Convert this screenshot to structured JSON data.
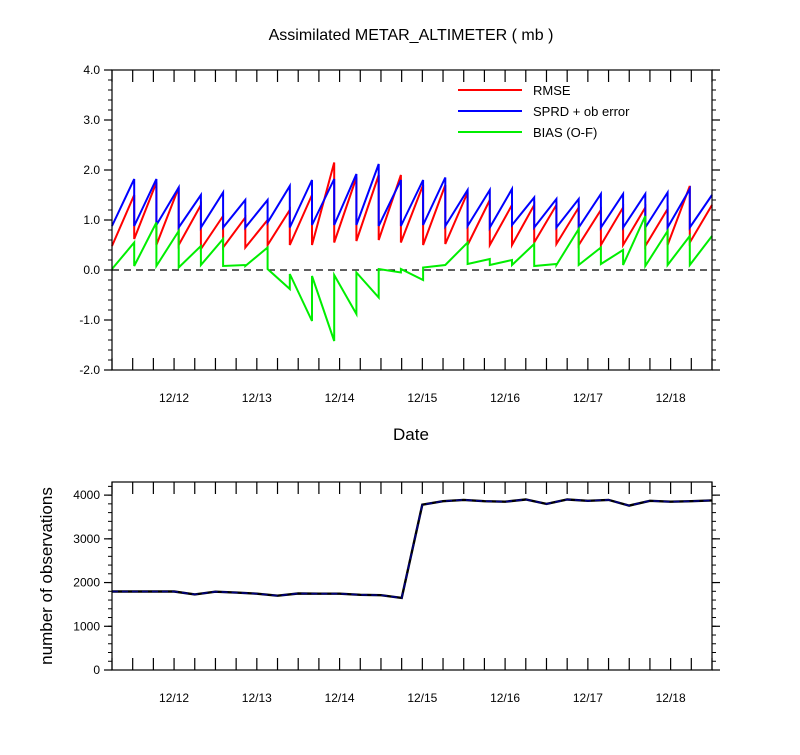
{
  "chart_data": [
    {
      "type": "line",
      "title": "Assimilated METAR_ALTIMETER ( mb )",
      "xlabel": "Date",
      "ylabel": "",
      "ylim": [
        -2.0,
        4.0
      ],
      "y_ticks": [
        {
          "value": 4.0,
          "label": "4.0"
        },
        {
          "value": 3.0,
          "label": "3.0"
        },
        {
          "value": 2.0,
          "label": "2.0"
        },
        {
          "value": 1.0,
          "label": "1.0"
        },
        {
          "value": 0.0,
          "label": "0.0"
        },
        {
          "value": -1.0,
          "label": "-1.0"
        },
        {
          "value": -2.0,
          "label": "-2.0"
        }
      ],
      "x_tick_labels": [
        {
          "day": 12,
          "label": "12/12"
        },
        {
          "day": 13,
          "label": "12/13"
        },
        {
          "day": 14,
          "label": "12/14"
        },
        {
          "day": 15,
          "label": "12/15"
        },
        {
          "day": 16,
          "label": "12/16"
        },
        {
          "day": 17,
          "label": "12/17"
        },
        {
          "day": 18,
          "label": "12/18"
        }
      ],
      "legend_position": "top-right",
      "zero_line": "dashed",
      "series": [
        {
          "name": "RMSE",
          "color": "#ff0000",
          "values": [
            [
              0.48,
              1.5
            ],
            [
              0.62,
              1.75
            ],
            [
              0.5,
              1.65
            ],
            [
              0.5,
              1.3
            ],
            [
              0.42,
              1.08
            ],
            [
              0.45,
              1.05
            ],
            [
              0.45,
              1.0
            ],
            [
              0.5,
              1.2
            ],
            [
              0.5,
              1.5
            ],
            [
              0.5,
              2.15
            ],
            [
              0.55,
              1.85
            ],
            [
              0.58,
              1.9
            ],
            [
              0.6,
              1.9
            ],
            [
              0.55,
              1.7
            ],
            [
              0.5,
              1.7
            ],
            [
              0.52,
              1.55
            ],
            [
              0.5,
              1.4
            ],
            [
              0.5,
              1.3
            ],
            [
              0.5,
              1.3
            ],
            [
              0.55,
              1.3
            ],
            [
              0.52,
              1.25
            ],
            [
              0.5,
              1.2
            ],
            [
              0.5,
              1.25
            ],
            [
              0.5,
              1.25
            ],
            [
              0.48,
              1.22
            ],
            [
              0.5,
              1.68
            ],
            [
              0.55,
              1.3
            ]
          ]
        },
        {
          "name": "SPRD + ob error",
          "color": "#0000ff",
          "values": [
            [
              0.88,
              1.82
            ],
            [
              0.88,
              1.82
            ],
            [
              0.9,
              1.65
            ],
            [
              0.85,
              1.5
            ],
            [
              0.85,
              1.55
            ],
            [
              0.85,
              1.4
            ],
            [
              0.85,
              1.4
            ],
            [
              0.95,
              1.68
            ],
            [
              0.85,
              1.8
            ],
            [
              0.9,
              1.82
            ],
            [
              0.9,
              1.92
            ],
            [
              0.9,
              2.12
            ],
            [
              0.88,
              1.8
            ],
            [
              0.88,
              1.8
            ],
            [
              0.9,
              1.85
            ],
            [
              0.88,
              1.6
            ],
            [
              0.88,
              1.6
            ],
            [
              0.85,
              1.62
            ],
            [
              0.9,
              1.45
            ],
            [
              0.85,
              1.42
            ],
            [
              0.85,
              1.42
            ],
            [
              0.85,
              1.52
            ],
            [
              0.85,
              1.52
            ],
            [
              0.85,
              1.52
            ],
            [
              0.85,
              1.55
            ],
            [
              0.85,
              1.62
            ],
            [
              0.85,
              1.5
            ]
          ]
        },
        {
          "name": "BIAS (O-F)",
          "color": "#00ee00",
          "values": [
            [
              0.02,
              0.55
            ],
            [
              0.08,
              0.95
            ],
            [
              0.08,
              0.78
            ],
            [
              0.05,
              0.48
            ],
            [
              0.1,
              0.62
            ],
            [
              0.08,
              0.1
            ],
            [
              0.08,
              0.45
            ],
            [
              0.02,
              -0.38
            ],
            [
              -0.08,
              -1.02
            ],
            [
              -0.12,
              -1.42
            ],
            [
              -0.1,
              -0.88
            ],
            [
              -0.05,
              -0.55
            ],
            [
              0.02,
              -0.05
            ],
            [
              0.02,
              -0.2
            ],
            [
              0.05,
              0.1
            ],
            [
              0.1,
              0.55
            ],
            [
              0.12,
              0.22
            ],
            [
              0.1,
              0.2
            ],
            [
              0.1,
              0.52
            ],
            [
              0.08,
              0.12
            ],
            [
              0.1,
              0.82
            ],
            [
              0.1,
              0.45
            ],
            [
              0.12,
              0.4
            ],
            [
              0.1,
              1.08
            ],
            [
              0.08,
              0.78
            ],
            [
              0.1,
              0.68
            ],
            [
              0.1,
              0.68
            ]
          ]
        }
      ]
    },
    {
      "type": "line",
      "title": "",
      "xlabel": "",
      "ylabel": "number of observations",
      "ylim": [
        0,
        4300
      ],
      "y_ticks": [
        {
          "value": 0,
          "label": "0"
        },
        {
          "value": 1000,
          "label": "1000"
        },
        {
          "value": 2000,
          "label": "2000"
        },
        {
          "value": 3000,
          "label": "3000"
        },
        {
          "value": 4000,
          "label": "4000"
        }
      ],
      "x_tick_labels": [
        {
          "day": 12,
          "label": "12/12"
        },
        {
          "day": 13,
          "label": "12/13"
        },
        {
          "day": 14,
          "label": "12/14"
        },
        {
          "day": 15,
          "label": "12/15"
        },
        {
          "day": 16,
          "label": "12/16"
        },
        {
          "day": 17,
          "label": "12/17"
        },
        {
          "day": 18,
          "label": "12/18"
        }
      ],
      "series": [
        {
          "color": "#000080",
          "values": [
            1795,
            1795,
            1795,
            1795,
            1730,
            1790,
            1770,
            1745,
            1700,
            1750,
            1745,
            1745,
            1720,
            1710,
            1650,
            3780,
            3860,
            3890,
            3860,
            3850,
            3900,
            3800,
            3900,
            3870,
            3890,
            3760,
            3870,
            3850,
            3860,
            3880
          ]
        }
      ]
    }
  ]
}
